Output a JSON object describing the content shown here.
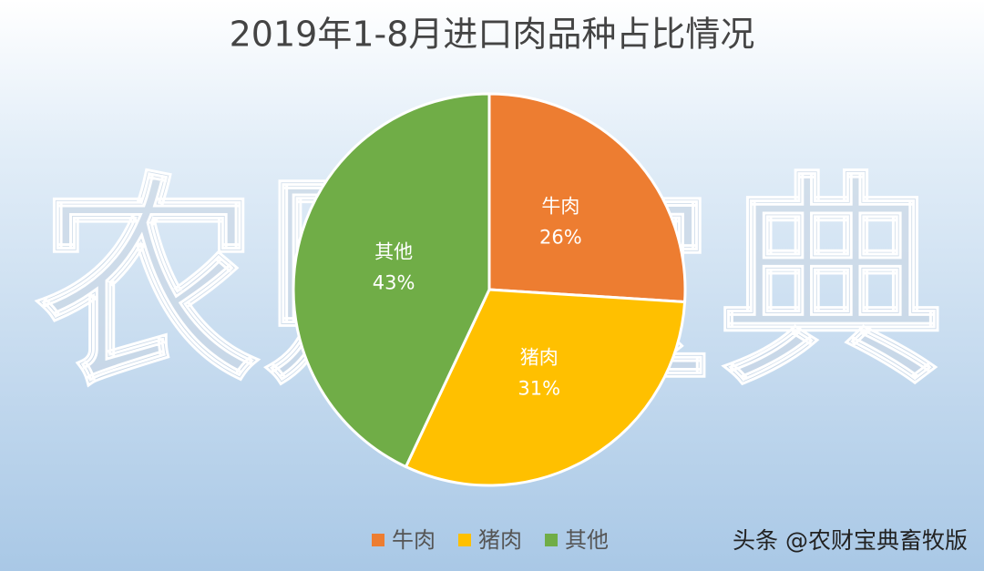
{
  "watermark": "农财宝典",
  "footer": "头条 @农财宝典畜牧版",
  "chart_data": {
    "type": "pie",
    "title": "2019年1-8月进口肉品种占比情况",
    "categories": [
      "牛肉",
      "猪肉",
      "其他"
    ],
    "values": [
      26,
      31,
      43
    ],
    "value_labels": [
      "26%",
      "31%",
      "43%"
    ],
    "colors": [
      "#ED7D31",
      "#FFC000",
      "#70AD47"
    ],
    "legend": "bottom"
  }
}
